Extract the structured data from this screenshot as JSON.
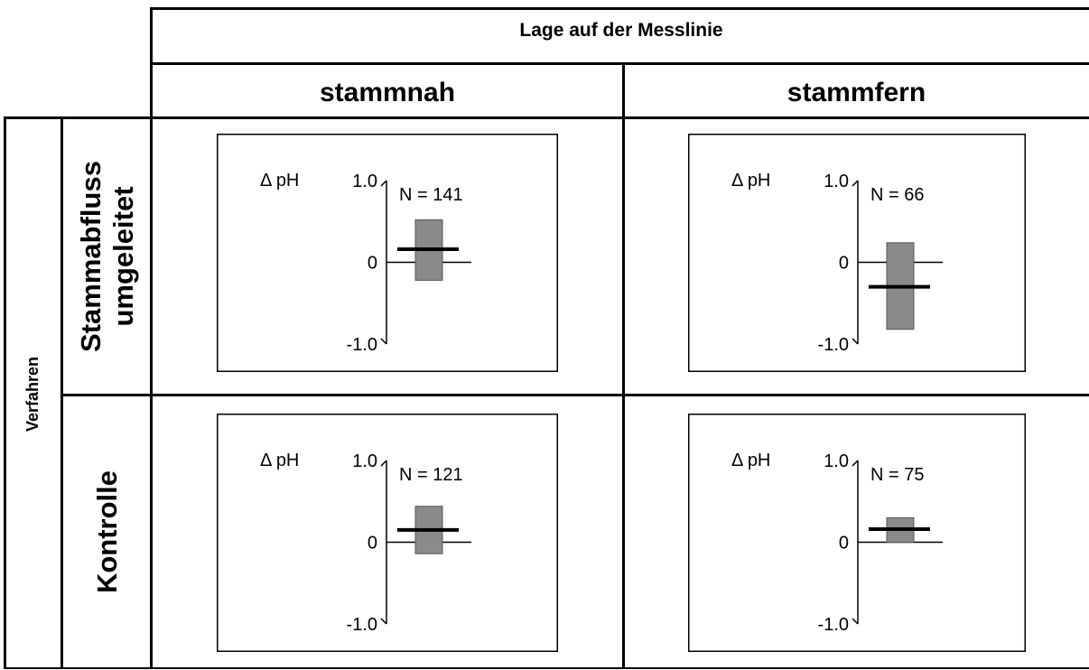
{
  "header": {
    "title": "Lage auf der Messlinie"
  },
  "columns": [
    {
      "label": "stammnah"
    },
    {
      "label": "stammfern"
    }
  ],
  "side_label": "Verfahren",
  "rows": [
    {
      "lines": [
        "Stammabfluss",
        "umgeleitet"
      ]
    },
    {
      "lines": [
        "Kontrolle"
      ]
    }
  ],
  "colors": {
    "bar_fill": "#8a8a8a",
    "line": "#000000"
  },
  "chart_data": [
    {
      "type": "bar",
      "row": "Stammabfluss umgeleitet",
      "column": "stammnah",
      "ylabel": "Δ pH",
      "ylim": [
        -1.0,
        1.0
      ],
      "yticks": [
        "1.0",
        "0",
        "-1.0"
      ],
      "n_label": "N = 141",
      "range": [
        -0.22,
        0.52
      ],
      "mean": 0.16
    },
    {
      "type": "bar",
      "row": "Stammabfluss umgeleitet",
      "column": "stammfern",
      "ylabel": "Δ pH",
      "ylim": [
        -1.0,
        1.0
      ],
      "yticks": [
        "1.0",
        "0",
        "-1.0"
      ],
      "n_label": "N = 66",
      "range": [
        -0.82,
        0.24
      ],
      "mean": -0.3
    },
    {
      "type": "bar",
      "row": "Kontrolle",
      "column": "stammnah",
      "ylabel": "Δ pH",
      "ylim": [
        -1.0,
        1.0
      ],
      "yticks": [
        "1.0",
        "0",
        "-1.0"
      ],
      "n_label": "N = 121",
      "range": [
        -0.14,
        0.44
      ],
      "mean": 0.15
    },
    {
      "type": "bar",
      "row": "Kontrolle",
      "column": "stammfern",
      "ylabel": "Δ pH",
      "ylim": [
        -1.0,
        1.0
      ],
      "yticks": [
        "1.0",
        "0",
        "-1.0"
      ],
      "n_label": "N = 75",
      "range": [
        0.0,
        0.3
      ],
      "mean": 0.16
    }
  ]
}
